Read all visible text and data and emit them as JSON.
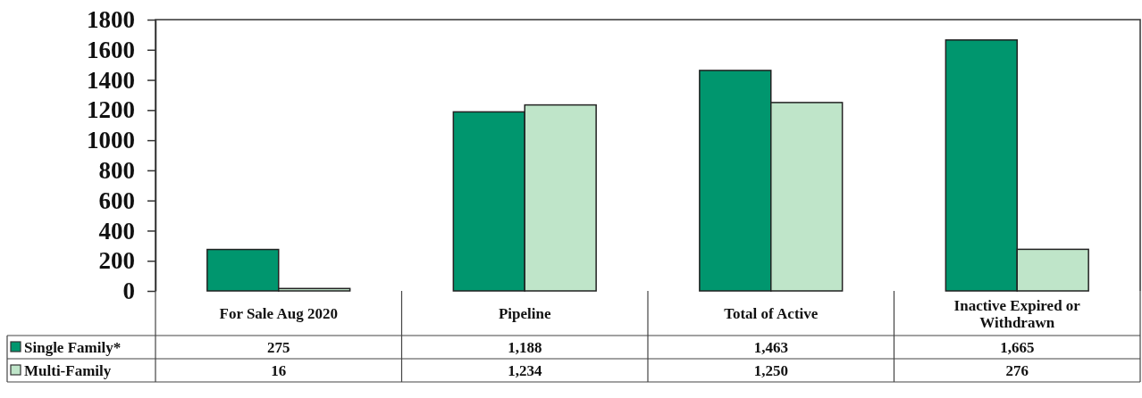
{
  "chart_data": {
    "type": "bar",
    "categories": [
      "For Sale Aug 2020",
      "Pipeline",
      "Total of Active",
      "Inactive Expired or Withdrawn"
    ],
    "series": [
      {
        "name": "Single Family*",
        "color": "#00966e",
        "values": [
          275,
          1188,
          1463,
          1665
        ],
        "value_labels": [
          "275",
          "1,188",
          "1,463",
          "1,665"
        ]
      },
      {
        "name": "Multi-Family",
        "color": "#bfe5c9",
        "values": [
          16,
          1234,
          1250,
          276
        ],
        "value_labels": [
          "16",
          "1,234",
          "1,250",
          "276"
        ]
      }
    ],
    "ylim": [
      0,
      1800
    ],
    "yticks": [
      0,
      200,
      400,
      600,
      800,
      1000,
      1200,
      1400,
      1600,
      1800
    ],
    "legend": "bottom left"
  }
}
